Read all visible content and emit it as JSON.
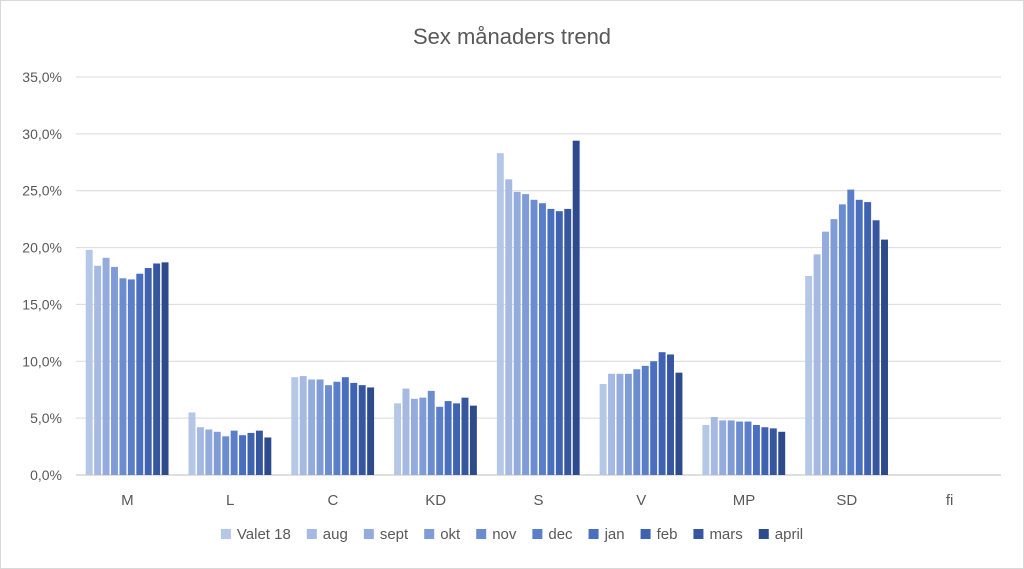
{
  "chart_data": {
    "type": "bar",
    "title": "Sex månaders trend",
    "xlabel": "",
    "ylabel": "",
    "ylim": [
      0,
      35
    ],
    "y_ticks": [
      "0,0%",
      "5,0%",
      "10,0%",
      "15,0%",
      "20,0%",
      "25,0%",
      "30,0%",
      "35,0%"
    ],
    "grid": true,
    "legend_position": "bottom",
    "categories": [
      "M",
      "L",
      "C",
      "KD",
      "S",
      "V",
      "MP",
      "SD",
      "fi"
    ],
    "series": [
      {
        "name": "Valet 18",
        "color": "#b4c7e7",
        "values": [
          19.8,
          5.5,
          8.6,
          6.3,
          28.3,
          8.0,
          4.4,
          17.5,
          null
        ]
      },
      {
        "name": "aug",
        "color": "#a5b9e3",
        "values": [
          18.4,
          4.2,
          8.7,
          7.6,
          26.0,
          8.9,
          5.1,
          19.4,
          null
        ]
      },
      {
        "name": "sept",
        "color": "#93abdd",
        "values": [
          19.1,
          4.0,
          8.4,
          6.7,
          24.9,
          8.9,
          4.8,
          21.4,
          null
        ]
      },
      {
        "name": "okt",
        "color": "#7f9cd6",
        "values": [
          18.3,
          3.8,
          8.4,
          6.8,
          24.7,
          8.9,
          4.8,
          22.5,
          null
        ]
      },
      {
        "name": "nov",
        "color": "#6b8dcf",
        "values": [
          17.3,
          3.4,
          7.9,
          7.4,
          24.2,
          9.3,
          4.7,
          23.8,
          null
        ]
      },
      {
        "name": "dec",
        "color": "#5a7ec7",
        "values": [
          17.2,
          3.9,
          8.2,
          6.0,
          23.9,
          9.6,
          4.7,
          25.1,
          null
        ]
      },
      {
        "name": "jan",
        "color": "#4a6fbe",
        "values": [
          17.7,
          3.5,
          8.6,
          6.5,
          23.4,
          10.0,
          4.4,
          24.2,
          null
        ]
      },
      {
        "name": "feb",
        "color": "#3f63b0",
        "values": [
          18.2,
          3.7,
          8.1,
          6.3,
          23.2,
          10.8,
          4.2,
          24.0,
          null
        ]
      },
      {
        "name": "mars",
        "color": "#36579f",
        "values": [
          18.6,
          3.9,
          7.9,
          6.8,
          23.4,
          10.6,
          4.1,
          22.4,
          null
        ]
      },
      {
        "name": "april",
        "color": "#2c4a8c",
        "values": [
          18.7,
          3.3,
          7.7,
          6.1,
          29.4,
          9.0,
          3.8,
          20.7,
          null
        ]
      }
    ]
  }
}
